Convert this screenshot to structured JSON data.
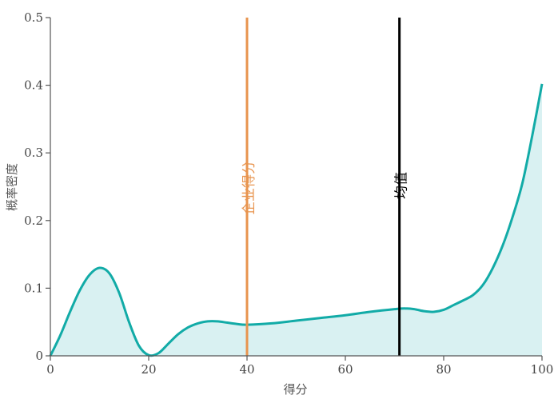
{
  "chart_data": {
    "type": "area",
    "xlabel": "得分",
    "ylabel": "概率密度",
    "xlim": [
      0,
      100
    ],
    "ylim": [
      0,
      0.5
    ],
    "xticks": [
      0,
      20,
      40,
      60,
      80,
      100
    ],
    "yticks": [
      0,
      0.1,
      0.2,
      0.3,
      0.4,
      0.5
    ],
    "ytick_labels": [
      "0",
      "0.1",
      "0.2",
      "0.3",
      "0.4",
      "0.5"
    ],
    "series": [
      {
        "x": [
          0,
          2,
          4,
          6,
          8,
          10,
          12,
          14,
          16,
          18,
          20,
          22,
          24,
          26,
          28,
          30,
          32,
          34,
          36,
          38,
          40,
          45,
          50,
          55,
          60,
          65,
          70,
          72,
          74,
          76,
          78,
          80,
          82,
          84,
          86,
          88,
          90,
          92,
          94,
          96,
          98,
          100
        ],
        "y": [
          0.0,
          0.03,
          0.065,
          0.097,
          0.12,
          0.13,
          0.122,
          0.093,
          0.05,
          0.015,
          0.001,
          0.004,
          0.018,
          0.032,
          0.042,
          0.048,
          0.051,
          0.051,
          0.049,
          0.047,
          0.046,
          0.048,
          0.052,
          0.056,
          0.06,
          0.065,
          0.069,
          0.07,
          0.069,
          0.066,
          0.065,
          0.068,
          0.075,
          0.082,
          0.09,
          0.105,
          0.13,
          0.163,
          0.205,
          0.255,
          0.325,
          0.402
        ],
        "color": "#12ABA7",
        "fill": "#D9F1F2"
      }
    ],
    "annotations": [
      {
        "label": "企业得分",
        "x": 40,
        "color": "#E8944E"
      },
      {
        "label": "均值",
        "x": 71,
        "color": "#000000"
      }
    ]
  }
}
